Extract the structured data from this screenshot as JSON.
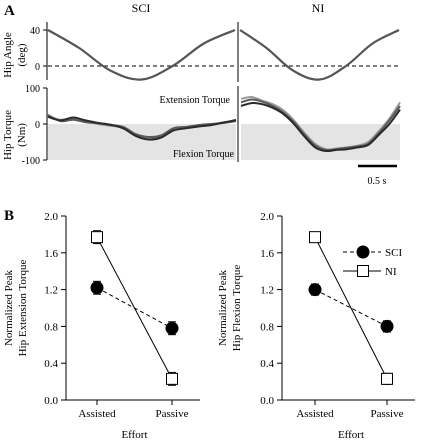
{
  "panel_a": {
    "label": "A",
    "col_sci": "SCI",
    "col_ni": "NI",
    "angle_ylabel_1": "Hip Angle",
    "angle_ylabel_2": "(deg)",
    "angle_ticks": [
      "40",
      "0"
    ],
    "torque_ylabel_1": "Hip Torque",
    "torque_ylabel_2": "(Nm)",
    "torque_ticks": [
      "100",
      "0",
      "-100"
    ],
    "ext_label": "Extension Torque",
    "flex_label": "Flexion Torque",
    "scalebar_label": "0.5 s"
  },
  "panel_b": {
    "label": "B",
    "legend_sci": "SCI",
    "legend_ni": "NI"
  },
  "chart_data": [
    {
      "type": "line",
      "subplot": "A hip angle SCI",
      "ylabel": "Hip Angle (deg)",
      "yticks": [
        40,
        0
      ],
      "x": [
        0,
        0.25,
        0.5,
        0.75,
        1.0,
        1.25,
        1.5
      ],
      "series": [
        {
          "values": [
            40,
            20,
            -5,
            -15,
            0,
            25,
            40
          ]
        }
      ]
    },
    {
      "type": "line",
      "subplot": "A hip angle NI",
      "ylabel": "Hip Angle (deg)",
      "yticks": [
        40,
        0
      ],
      "x": [
        0,
        0.25,
        0.5,
        0.75,
        1.0,
        1.25,
        1.5
      ],
      "series": [
        {
          "values": [
            40,
            20,
            -5,
            -15,
            0,
            25,
            40
          ]
        }
      ]
    },
    {
      "type": "line",
      "subplot": "A hip torque SCI",
      "ylabel": "Hip Torque (Nm)",
      "ylim": [
        -100,
        100
      ],
      "yticks": [
        100,
        0,
        -100
      ],
      "x": [
        0,
        0.1,
        0.2,
        0.3,
        0.4,
        0.5,
        0.6,
        0.7,
        0.8,
        0.9,
        1.0,
        1.1,
        1.2,
        1.3,
        1.4,
        1.5
      ],
      "series": [
        {
          "values": [
            22,
            12,
            15,
            8,
            0,
            -5,
            -10,
            -30,
            -40,
            -35,
            -15,
            -10,
            -5,
            -2,
            5,
            10
          ]
        },
        {
          "values": [
            25,
            8,
            12,
            5,
            2,
            -3,
            -8,
            -28,
            -36,
            -32,
            -12,
            -8,
            -3,
            0,
            3,
            8
          ]
        },
        {
          "values": [
            20,
            10,
            18,
            10,
            3,
            -2,
            -12,
            -33,
            -43,
            -38,
            -18,
            -12,
            -7,
            -3,
            4,
            11
          ]
        }
      ]
    },
    {
      "type": "line",
      "subplot": "A hip torque NI",
      "ylabel": "Hip Torque (Nm)",
      "ylim": [
        -100,
        100
      ],
      "yticks": [
        100,
        0,
        -100
      ],
      "x": [
        0,
        0.1,
        0.2,
        0.3,
        0.4,
        0.5,
        0.6,
        0.7,
        0.8,
        0.9,
        1.0,
        1.1,
        1.2,
        1.3,
        1.4,
        1.5
      ],
      "series": [
        {
          "values": [
            70,
            75,
            65,
            55,
            38,
            10,
            -25,
            -55,
            -70,
            -68,
            -65,
            -60,
            -50,
            -20,
            15,
            60
          ]
        },
        {
          "values": [
            60,
            68,
            62,
            50,
            32,
            5,
            -30,
            -60,
            -72,
            -70,
            -66,
            -62,
            -55,
            -25,
            10,
            50
          ]
        },
        {
          "values": [
            50,
            58,
            55,
            45,
            28,
            0,
            -35,
            -65,
            -75,
            -72,
            -70,
            -65,
            -58,
            -30,
            0,
            40
          ]
        }
      ]
    },
    {
      "type": "line",
      "subplot": "B left",
      "xlabel": "Effort",
      "ylabel": "Normalized Peak Hip Extension Torque",
      "categories": [
        "Assisted",
        "Passive"
      ],
      "ylim": [
        0.0,
        2.0
      ],
      "yticks": [
        "0.0",
        "0.4",
        "0.8",
        "1.2",
        "1.6",
        "2.0"
      ],
      "series": [
        {
          "name": "SCI",
          "values": [
            1.22,
            0.78
          ],
          "errors": [
            0.07,
            0.07
          ]
        },
        {
          "name": "NI",
          "values": [
            1.77,
            0.23
          ],
          "errors": [
            0.07,
            0.07
          ]
        }
      ],
      "legend": "top-right"
    },
    {
      "type": "line",
      "subplot": "B right",
      "xlabel": "Effort",
      "ylabel": "Normalized Peak Hip Flexion Torque",
      "categories": [
        "Assisted",
        "Passive"
      ],
      "ylim": [
        0.0,
        2.0
      ],
      "yticks": [
        "0.0",
        "0.4",
        "0.8",
        "1.2",
        "1.6",
        "2.0"
      ],
      "series": [
        {
          "name": "SCI",
          "values": [
            1.2,
            0.8
          ],
          "errors": [
            0.06,
            0.06
          ]
        },
        {
          "name": "NI",
          "values": [
            1.77,
            0.23
          ],
          "errors": [
            0.05,
            0.06
          ]
        }
      ]
    }
  ]
}
